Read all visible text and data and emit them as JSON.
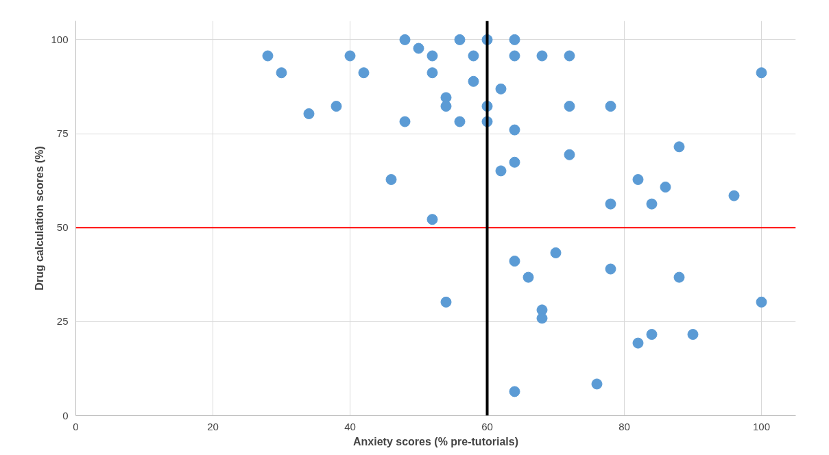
{
  "chart_data": {
    "type": "scatter",
    "xlabel": "Anxiety scores (% pre-tutorials)",
    "ylabel": "Drug calculation scores (%)",
    "x": [
      28,
      30,
      34,
      38,
      40,
      42,
      46,
      48,
      48,
      50,
      52,
      52,
      52,
      54,
      54,
      54,
      56,
      56,
      58,
      58,
      60,
      60,
      60,
      62,
      62,
      64,
      64,
      64,
      64,
      64,
      64,
      66,
      68,
      68,
      68,
      70,
      72,
      72,
      72,
      76,
      78,
      78,
      78,
      82,
      82,
      84,
      84,
      86,
      88,
      88,
      90,
      96,
      100,
      100
    ],
    "series": [
      {
        "color": "#5b9bd5",
        "values": [
          95.7,
          91.2,
          80.3,
          82.3,
          95.7,
          91.2,
          62.8,
          100,
          78.2,
          97.7,
          95.7,
          91.2,
          52.2,
          84.6,
          82.3,
          30.2,
          100,
          78.2,
          95.7,
          88.9,
          100,
          82.3,
          78.2,
          86.9,
          65.1,
          100,
          95.7,
          76.0,
          67.4,
          41.1,
          6.4,
          36.8,
          95.7,
          28.1,
          25.9,
          43.3,
          95.7,
          82.3,
          69.4,
          8.4,
          82.3,
          56.3,
          39.0,
          62.8,
          19.3,
          56.3,
          21.6,
          60.8,
          71.5,
          36.8,
          21.6,
          58.5,
          91.2,
          30.2
        ]
      }
    ],
    "xlim": [
      0,
      105
    ],
    "ylim": [
      0,
      105
    ],
    "xticks": [
      0,
      20,
      40,
      60,
      80,
      100
    ],
    "yticks": [
      0,
      25,
      50,
      75,
      100
    ],
    "grid": true,
    "marker": "circle",
    "ref_lines": [
      {
        "axis": "y",
        "value": 50,
        "color": "#ff0000"
      },
      {
        "axis": "x",
        "value": 60,
        "color": "#000000"
      }
    ]
  }
}
